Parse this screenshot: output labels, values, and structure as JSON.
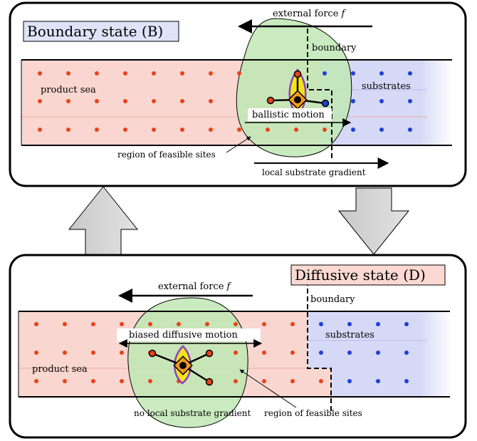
{
  "boundary_panel": {
    "title": "Boundary state (B)",
    "external_force": "external force",
    "force_symbol": "f",
    "boundary": "boundary",
    "product_sea": "product sea",
    "substrates": "substrates",
    "motion": "ballistic motion",
    "feasible_sites": "region of feasible sites",
    "gradient": "local substrate gradient"
  },
  "diffusive_panel": {
    "title": "Diffusive state (D)",
    "external_force": "external force",
    "force_symbol": "f",
    "boundary": "boundary",
    "product_sea": "product sea",
    "substrates": "substrates",
    "motion": "biased diffusive motion",
    "feasible_sites": "region of feasible sites",
    "gradient": "no local substrate gradient"
  },
  "colors": {
    "product": "#f9d6d0",
    "substrate": "#d6d9f6",
    "product_dot": "#e8431a",
    "substrate_dot": "#1f3fd6",
    "feasible_region": "#bfe8b4",
    "title_b_bg": "#dfe3f8",
    "title_d_bg": "#fbd9d2",
    "motor_fill": "#f2e21a",
    "motor_outline": "#8a3fc8"
  }
}
